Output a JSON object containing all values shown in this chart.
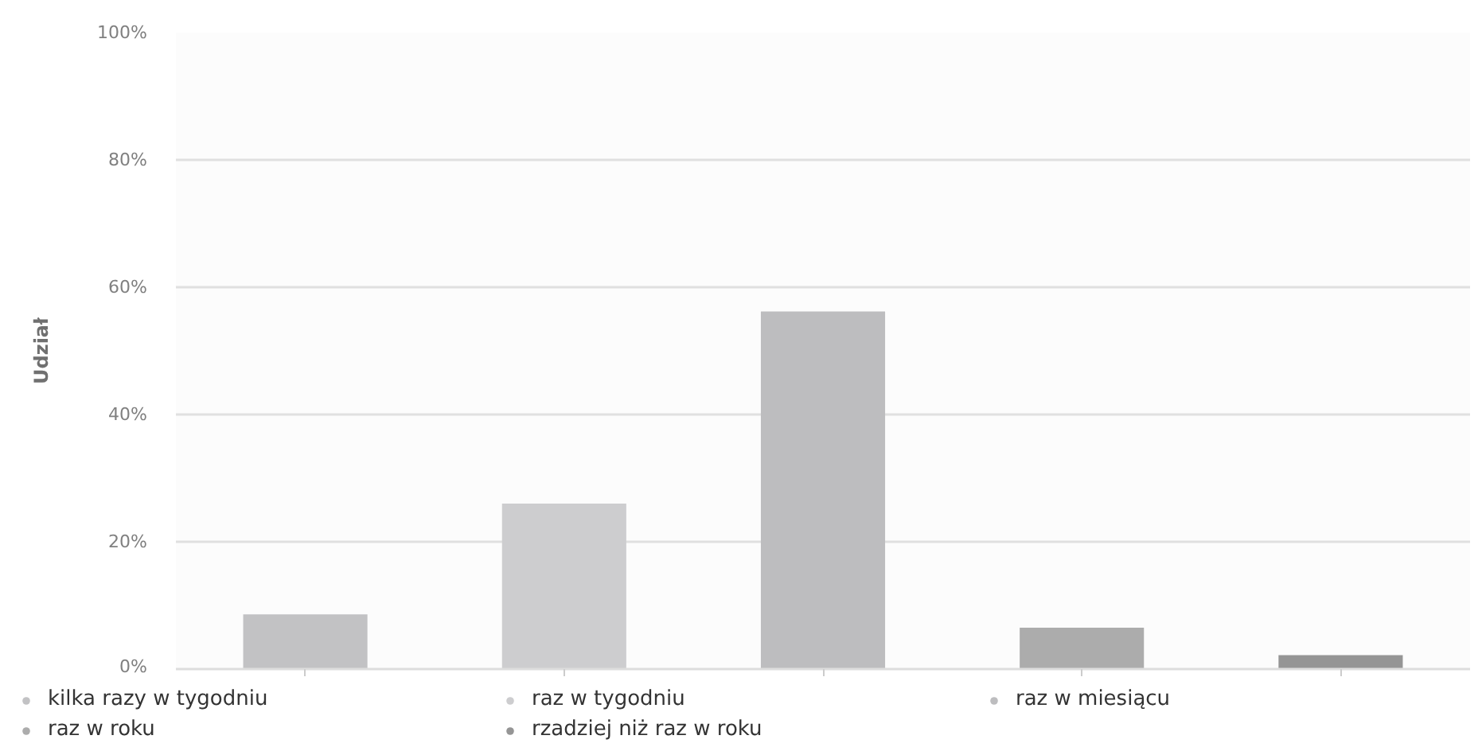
{
  "chart_data": {
    "type": "bar",
    "ylabel": "Udział",
    "categories": [
      null,
      null,
      null,
      null,
      null
    ],
    "series": [
      {
        "name": "kilka razy w tygodniu",
        "color": "#c2c2c4",
        "values": [
          8.6,
          null,
          null,
          null,
          null
        ]
      },
      {
        "name": "raz w tygodniu",
        "color": "#cdcdcf",
        "values": [
          null,
          26.0,
          null,
          null,
          null
        ]
      },
      {
        "name": "raz w miesiącu",
        "color": "#bdbdbf",
        "values": [
          null,
          null,
          56.2,
          null,
          null
        ]
      },
      {
        "name": "raz w roku",
        "color": "#acacac",
        "values": [
          null,
          null,
          null,
          6.5,
          null
        ]
      },
      {
        "name": "rzadziej niż raz w roku",
        "color": "#959595",
        "values": [
          null,
          null,
          null,
          null,
          2.2
        ]
      }
    ],
    "ylim": [
      0,
      100
    ],
    "yticks": [
      {
        "value": 0,
        "label": "0%"
      },
      {
        "value": 20,
        "label": "20%"
      },
      {
        "value": 40,
        "label": "40%"
      },
      {
        "value": 60,
        "label": "60%"
      },
      {
        "value": 80,
        "label": "80%"
      },
      {
        "value": 100,
        "label": "100%"
      }
    ],
    "grid": "y",
    "legend": "bottom",
    "tick_labels": "y"
  }
}
